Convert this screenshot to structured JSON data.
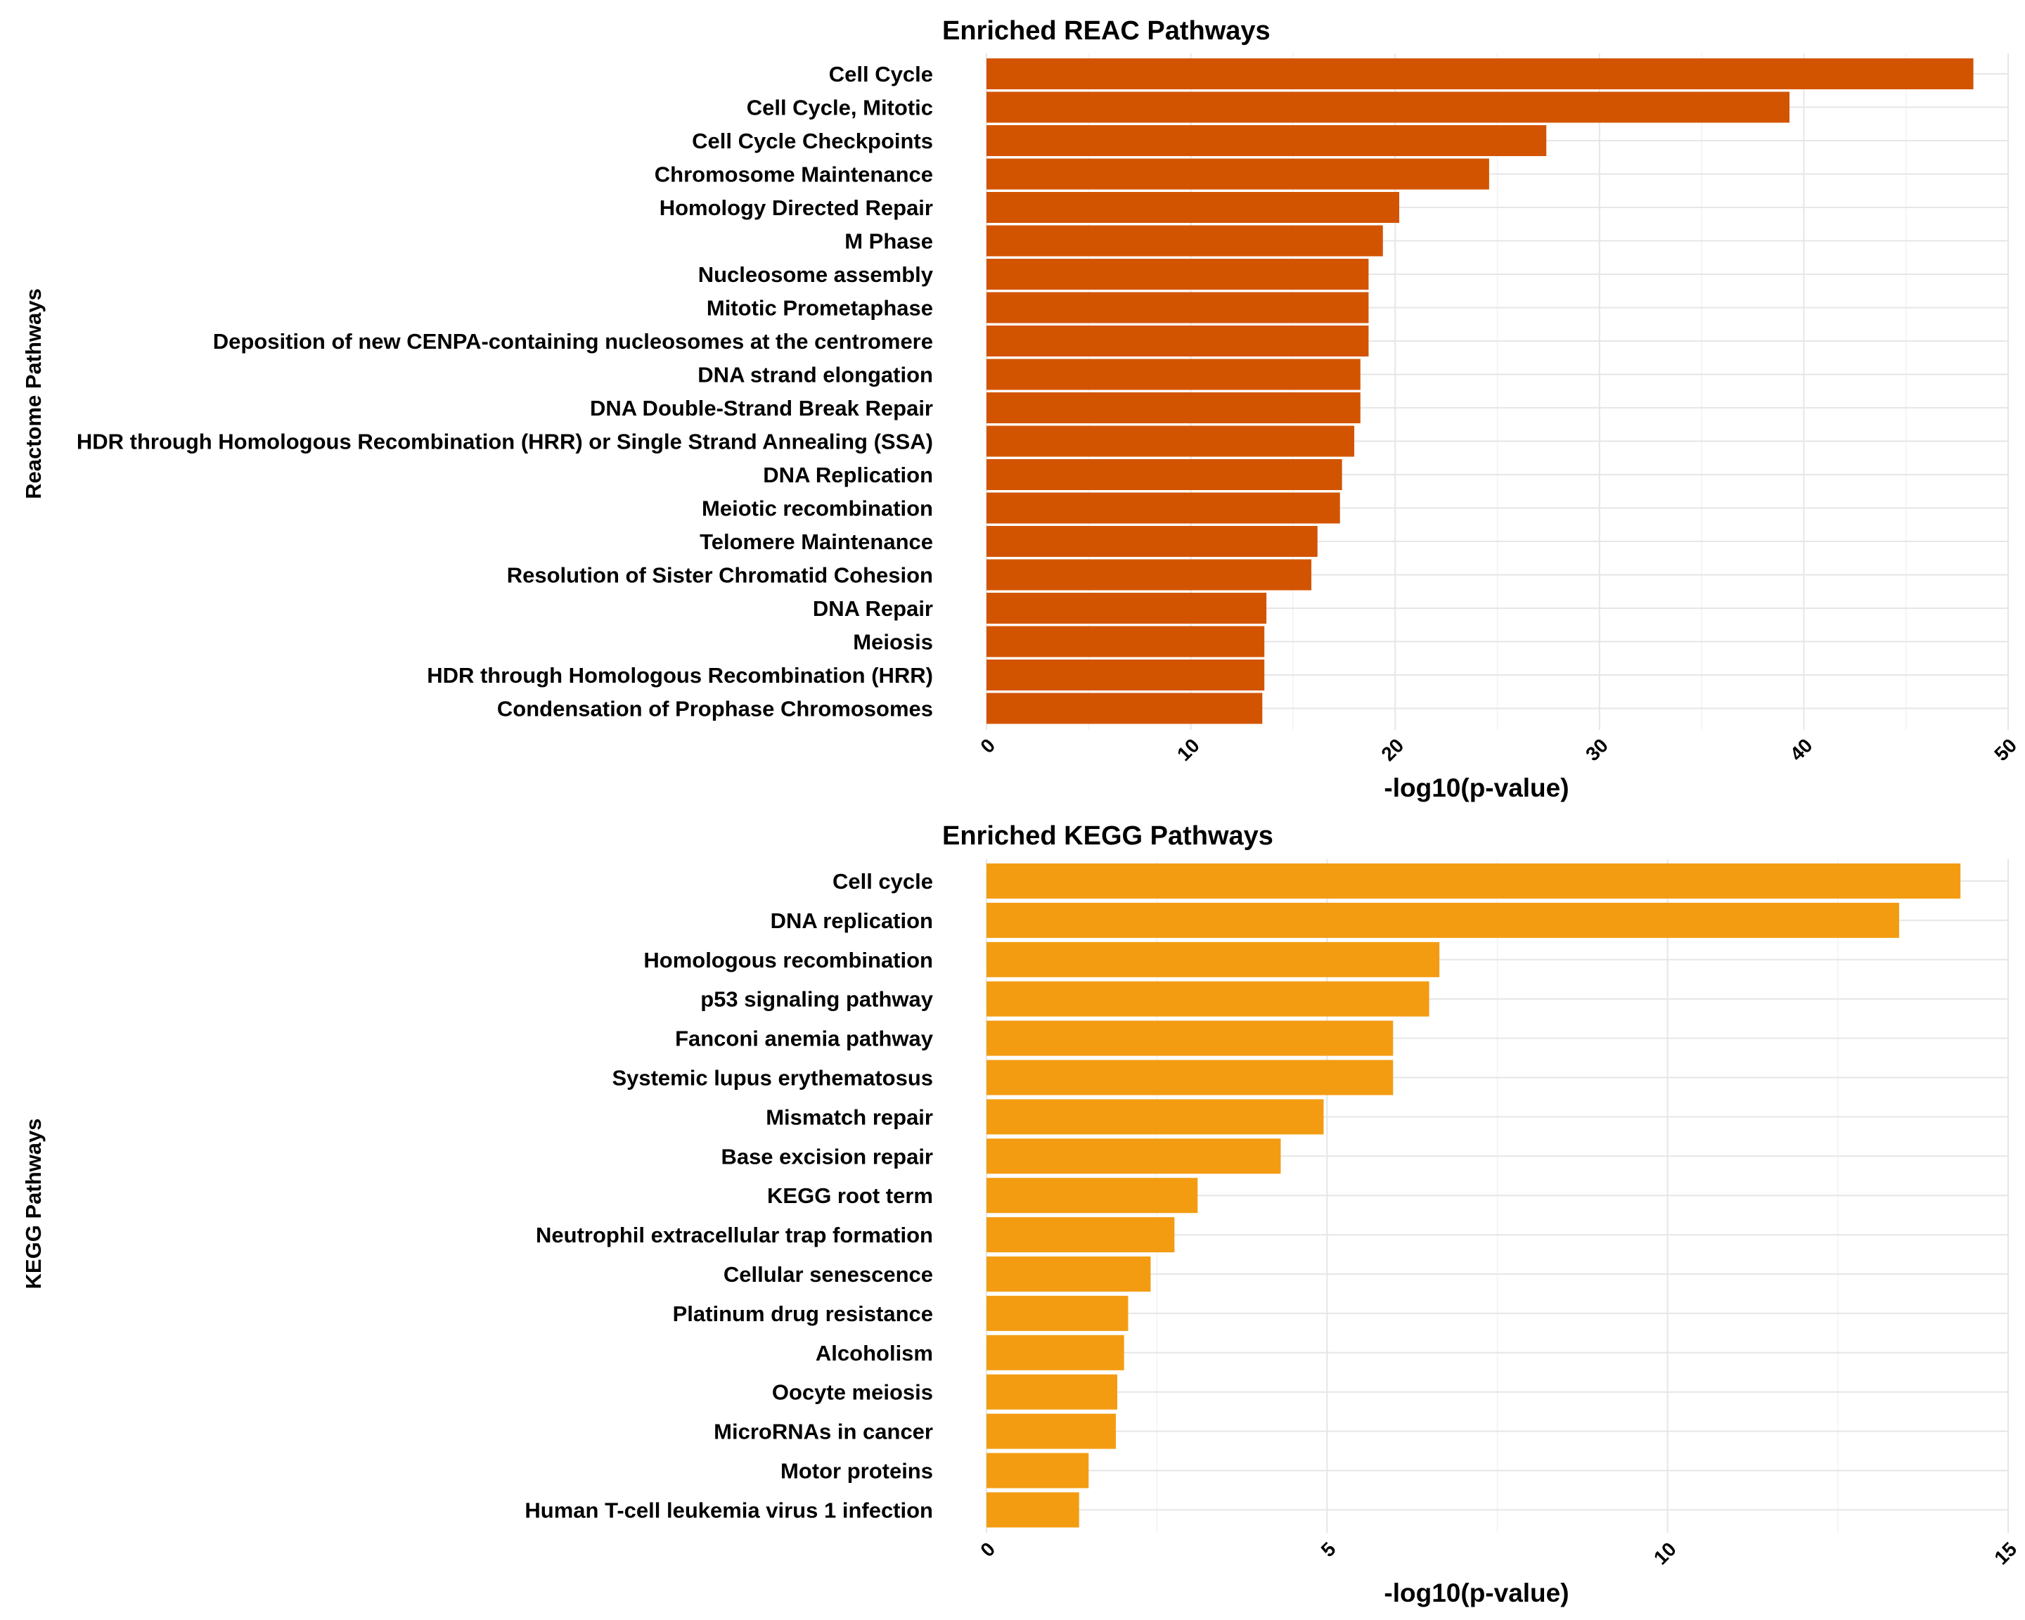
{
  "chart_data": [
    {
      "type": "bar",
      "orientation": "horizontal",
      "title": "Enriched REAC Pathways",
      "xlabel": "-log10(p-value)",
      "ylabel": "Reactome Pathways",
      "xlim": [
        0,
        50
      ],
      "xticks": [
        0,
        10,
        20,
        30,
        40,
        50
      ],
      "grid": true,
      "color": "#D35400",
      "categories": [
        "Cell Cycle",
        "Cell Cycle, Mitotic",
        "Cell Cycle Checkpoints",
        "Chromosome Maintenance",
        "Homology Directed Repair",
        "M Phase",
        "Nucleosome assembly",
        "Mitotic Prometaphase",
        "Deposition of new CENPA-containing nucleosomes at the centromere",
        "DNA strand elongation",
        "DNA Double-Strand Break Repair",
        "HDR through Homologous Recombination (HRR) or Single Strand Annealing (SSA)",
        "DNA Replication",
        "Meiotic recombination",
        "Telomere Maintenance",
        "Resolution of Sister Chromatid Cohesion",
        "DNA Repair",
        "Meiosis",
        "HDR through Homologous Recombination (HRR)",
        "Condensation of Prophase Chromosomes"
      ],
      "values": [
        48.3,
        39.3,
        27.4,
        24.6,
        20.2,
        19.4,
        18.7,
        18.7,
        18.7,
        18.3,
        18.3,
        18.0,
        17.4,
        17.3,
        16.2,
        15.9,
        13.7,
        13.6,
        13.6,
        13.5
      ]
    },
    {
      "type": "bar",
      "orientation": "horizontal",
      "title": "Enriched KEGG Pathways",
      "xlabel": "-log10(p-value)",
      "ylabel": "KEGG Pathways",
      "xlim": [
        0,
        15
      ],
      "xticks": [
        0,
        5,
        10,
        15
      ],
      "grid": true,
      "color": "#F39C12",
      "categories": [
        "Cell cycle",
        "DNA replication",
        "Homologous recombination",
        "p53 signaling pathway",
        "Fanconi anemia pathway",
        "Systemic lupus erythematosus",
        "Mismatch repair",
        "Base excision repair",
        "KEGG root term",
        "Neutrophil extracellular trap formation",
        "Cellular senescence",
        "Platinum drug resistance",
        "Alcoholism",
        "Oocyte meiosis",
        "MicroRNAs in cancer",
        "Motor proteins",
        "Human T-cell leukemia virus 1 infection"
      ],
      "values": [
        14.3,
        13.4,
        6.65,
        6.5,
        5.97,
        5.97,
        4.95,
        4.32,
        3.1,
        2.76,
        2.41,
        2.08,
        2.02,
        1.92,
        1.9,
        1.5,
        1.36
      ]
    }
  ]
}
